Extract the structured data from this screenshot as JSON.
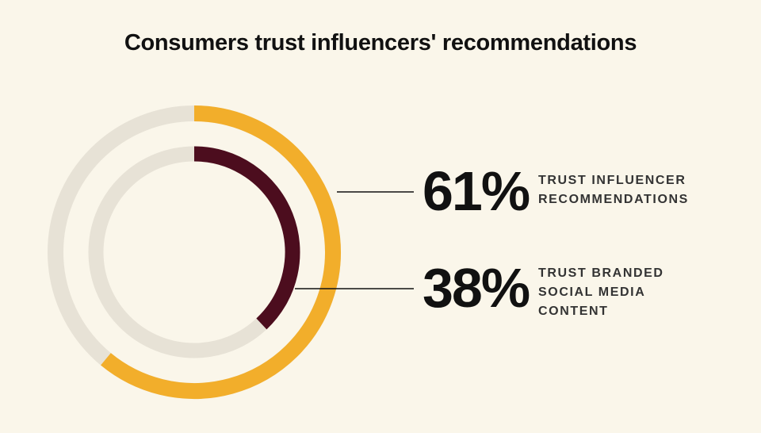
{
  "chart_data": {
    "type": "radial_bar",
    "title": "Consumers trust influencers' recommendations",
    "ylim": [
      0,
      100
    ],
    "track_color": "#e7e2d6",
    "series": [
      {
        "name": "TRUST INFLUENCER RECOMMENDATIONS",
        "color": "#f2ae2b",
        "values": [
          61
        ],
        "value_labels": [
          "61%"
        ]
      },
      {
        "name": "TRUST BRANDED SOCIAL MEDIA CONTENT",
        "color": "#4c0d1e",
        "values": [
          38
        ],
        "value_labels": [
          "38%"
        ]
      }
    ]
  }
}
